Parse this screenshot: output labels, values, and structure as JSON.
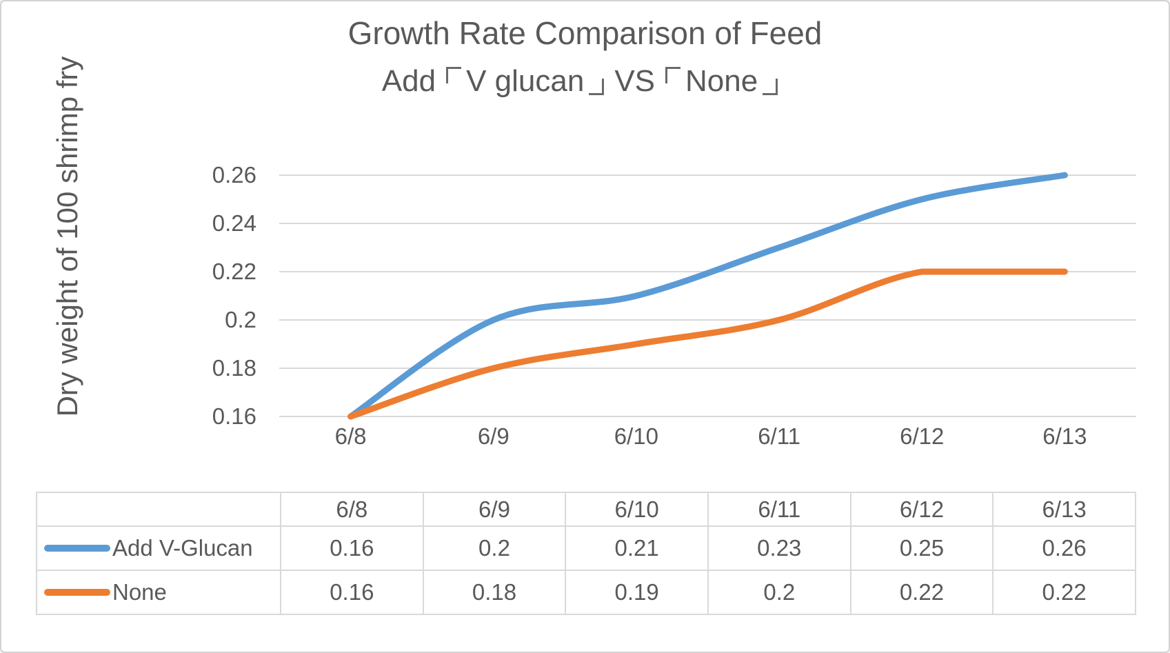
{
  "chart_data": {
    "type": "line",
    "title": "Growth Rate Comparison of Feed",
    "subtitle": "Add 「V glucan」 VS 「None」",
    "ylabel": "Dry weight of 100 shrimp fry",
    "xlabel": "",
    "categories": [
      "6/8",
      "6/9",
      "6/10",
      "6/11",
      "6/12",
      "6/13"
    ],
    "series": [
      {
        "name": "Add V-Glucan",
        "color": "#5B9BD5",
        "values": [
          0.16,
          0.2,
          0.21,
          0.23,
          0.25,
          0.26
        ]
      },
      {
        "name": "None",
        "color": "#ED7D31",
        "values": [
          0.16,
          0.18,
          0.19,
          0.2,
          0.22,
          0.22
        ]
      }
    ],
    "ylim": [
      0.16,
      0.26
    ],
    "yticks": [
      0.16,
      0.18,
      0.2,
      0.22,
      0.24,
      0.26
    ],
    "grid": true,
    "smoothed_lines": true,
    "legend_position": "table-left",
    "colors": {
      "text": "#595959",
      "gridline": "#D9D9D9"
    }
  },
  "display": {
    "title_line1": "Growth Rate Comparison of Feed",
    "subtitle_parts": [
      "Add",
      "V glucan",
      "VS",
      "None"
    ],
    "bracket_open": "「",
    "bracket_close": "」"
  }
}
